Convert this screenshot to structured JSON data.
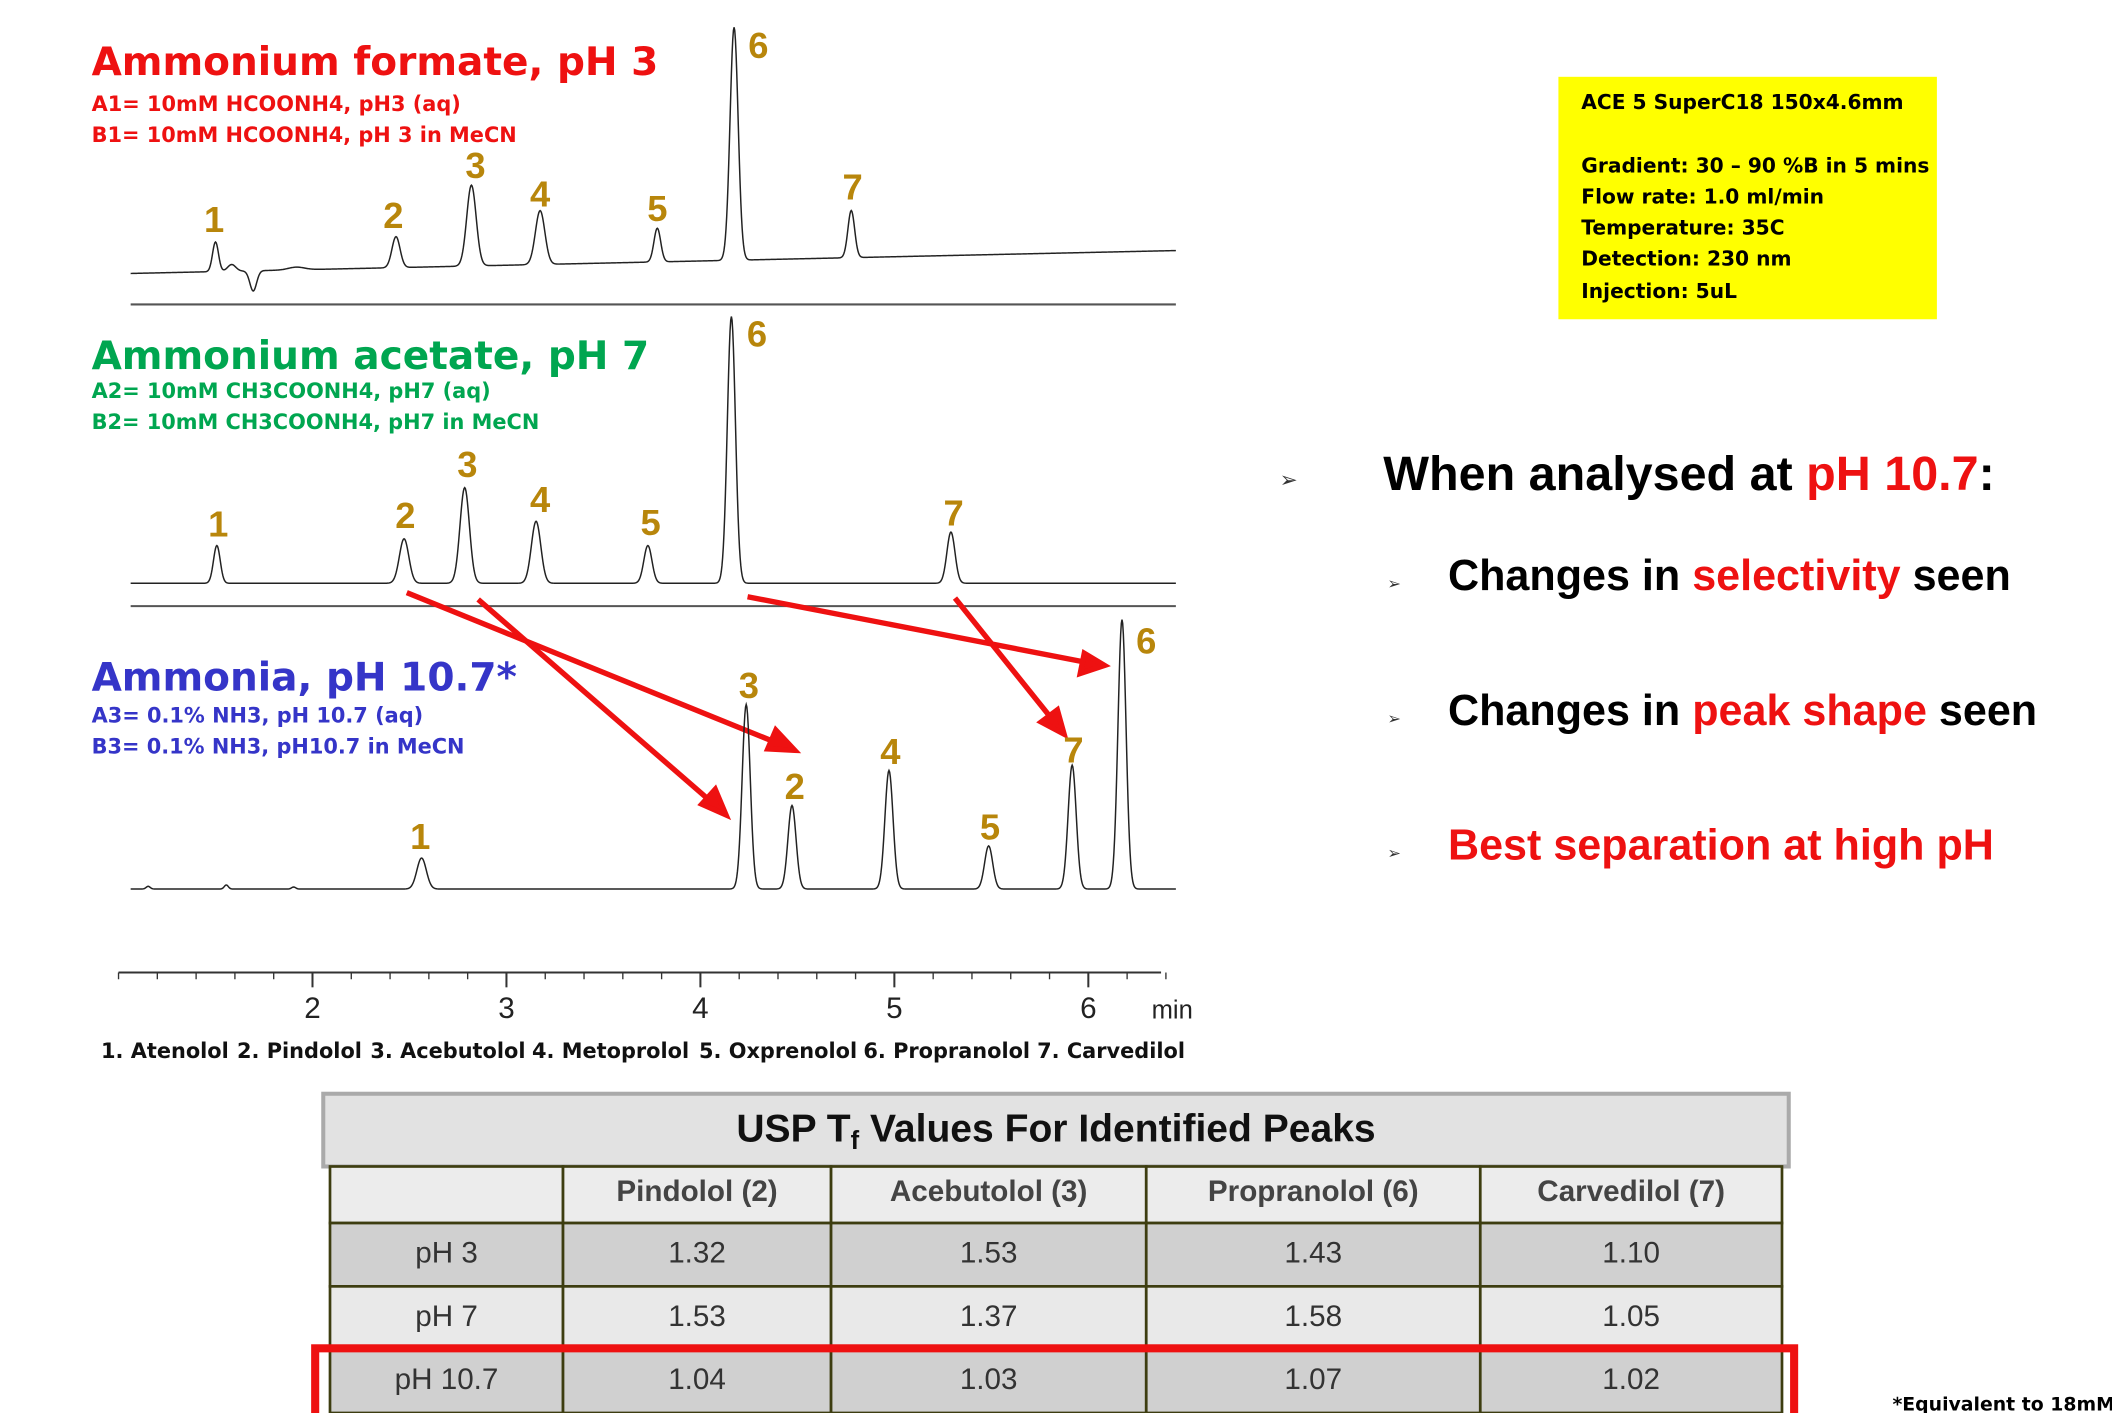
{
  "panels": [
    {
      "title": "Ammonium formate, pH 3",
      "color": "#ee1111",
      "lines": [
        "A1= 10mM HCOONH4, pH3 (aq)",
        "B1= 10mM HCOONH4, pH 3 in MeCN"
      ],
      "peaks": [
        "1",
        "2",
        "3",
        "4",
        "5",
        "6",
        "7"
      ]
    },
    {
      "title": "Ammonium acetate, pH 7",
      "color": "#00a650",
      "lines": [
        "A2= 10mM CH3COONH4, pH7 (aq)",
        "B2= 10mM CH3COONH4, pH7 in MeCN"
      ],
      "peaks": [
        "1",
        "2",
        "3",
        "4",
        "5",
        "6",
        "7"
      ]
    },
    {
      "title": "Ammonia, pH 10.7*",
      "color": "#3535c8",
      "lines": [
        "A3= 0.1% NH3, pH 10.7 (aq)",
        "B3= 0.1% NH3, pH10.7 in MeCN"
      ],
      "peaks": [
        "1",
        "3",
        "2",
        "4",
        "5",
        "7",
        "6"
      ]
    }
  ],
  "peak_label_color": "#b8860b",
  "axis": {
    "ticks": [
      2,
      3,
      4,
      5,
      6
    ],
    "unit": "min"
  },
  "compounds": [
    "1. Atenolol",
    "2. Pindolol",
    "3. Acebutolol",
    "4. Metoprolol",
    "5. Oxprenolol",
    "6. Propranolol",
    "7. Carvedilol"
  ],
  "conditions": {
    "color": "#ffff00",
    "lines": [
      "ACE 5 SuperC18 150x4.6mm",
      "Gradient: 30 – 90 %B in 5 mins",
      "Flow rate: 1.0 ml/min",
      "Temperature: 35C",
      "Detection: 230 nm",
      "Injection: 5uL"
    ]
  },
  "bullets": {
    "heading": [
      {
        "text": "When analysed at ",
        "color": "#000000"
      },
      {
        "text": "pH 10.7",
        "color": "#ee1111"
      },
      {
        "text": ":",
        "color": "#000000"
      }
    ],
    "items": [
      [
        {
          "text": "Changes in ",
          "color": "#000000"
        },
        {
          "text": "selectivity",
          "color": "#ee1111"
        },
        {
          "text": " seen",
          "color": "#000000"
        }
      ],
      [
        {
          "text": "Changes in ",
          "color": "#000000"
        },
        {
          "text": "peak shape",
          "color": "#ee1111"
        },
        {
          "text": " seen",
          "color": "#000000"
        }
      ],
      [
        {
          "text": "Best separation at high pH",
          "color": "#ee1111"
        }
      ]
    ]
  },
  "table": {
    "title": [
      "USP T",
      "f",
      " Values For Identified Peaks"
    ],
    "columns": [
      "Pindolol (2)",
      "Acebutolol (3)",
      "Propranolol (6)",
      "Carvedilol (7)"
    ],
    "rows": [
      {
        "label": "pH 3",
        "values": [
          "1.32",
          "1.53",
          "1.43",
          "1.10"
        ]
      },
      {
        "label": "pH 7",
        "values": [
          "1.53",
          "1.37",
          "1.58",
          "1.05"
        ]
      },
      {
        "label": "pH 10.7",
        "values": [
          "1.04",
          "1.03",
          "1.07",
          "1.02"
        ]
      }
    ]
  },
  "footnote": "*Equivalent to 18mM"
}
